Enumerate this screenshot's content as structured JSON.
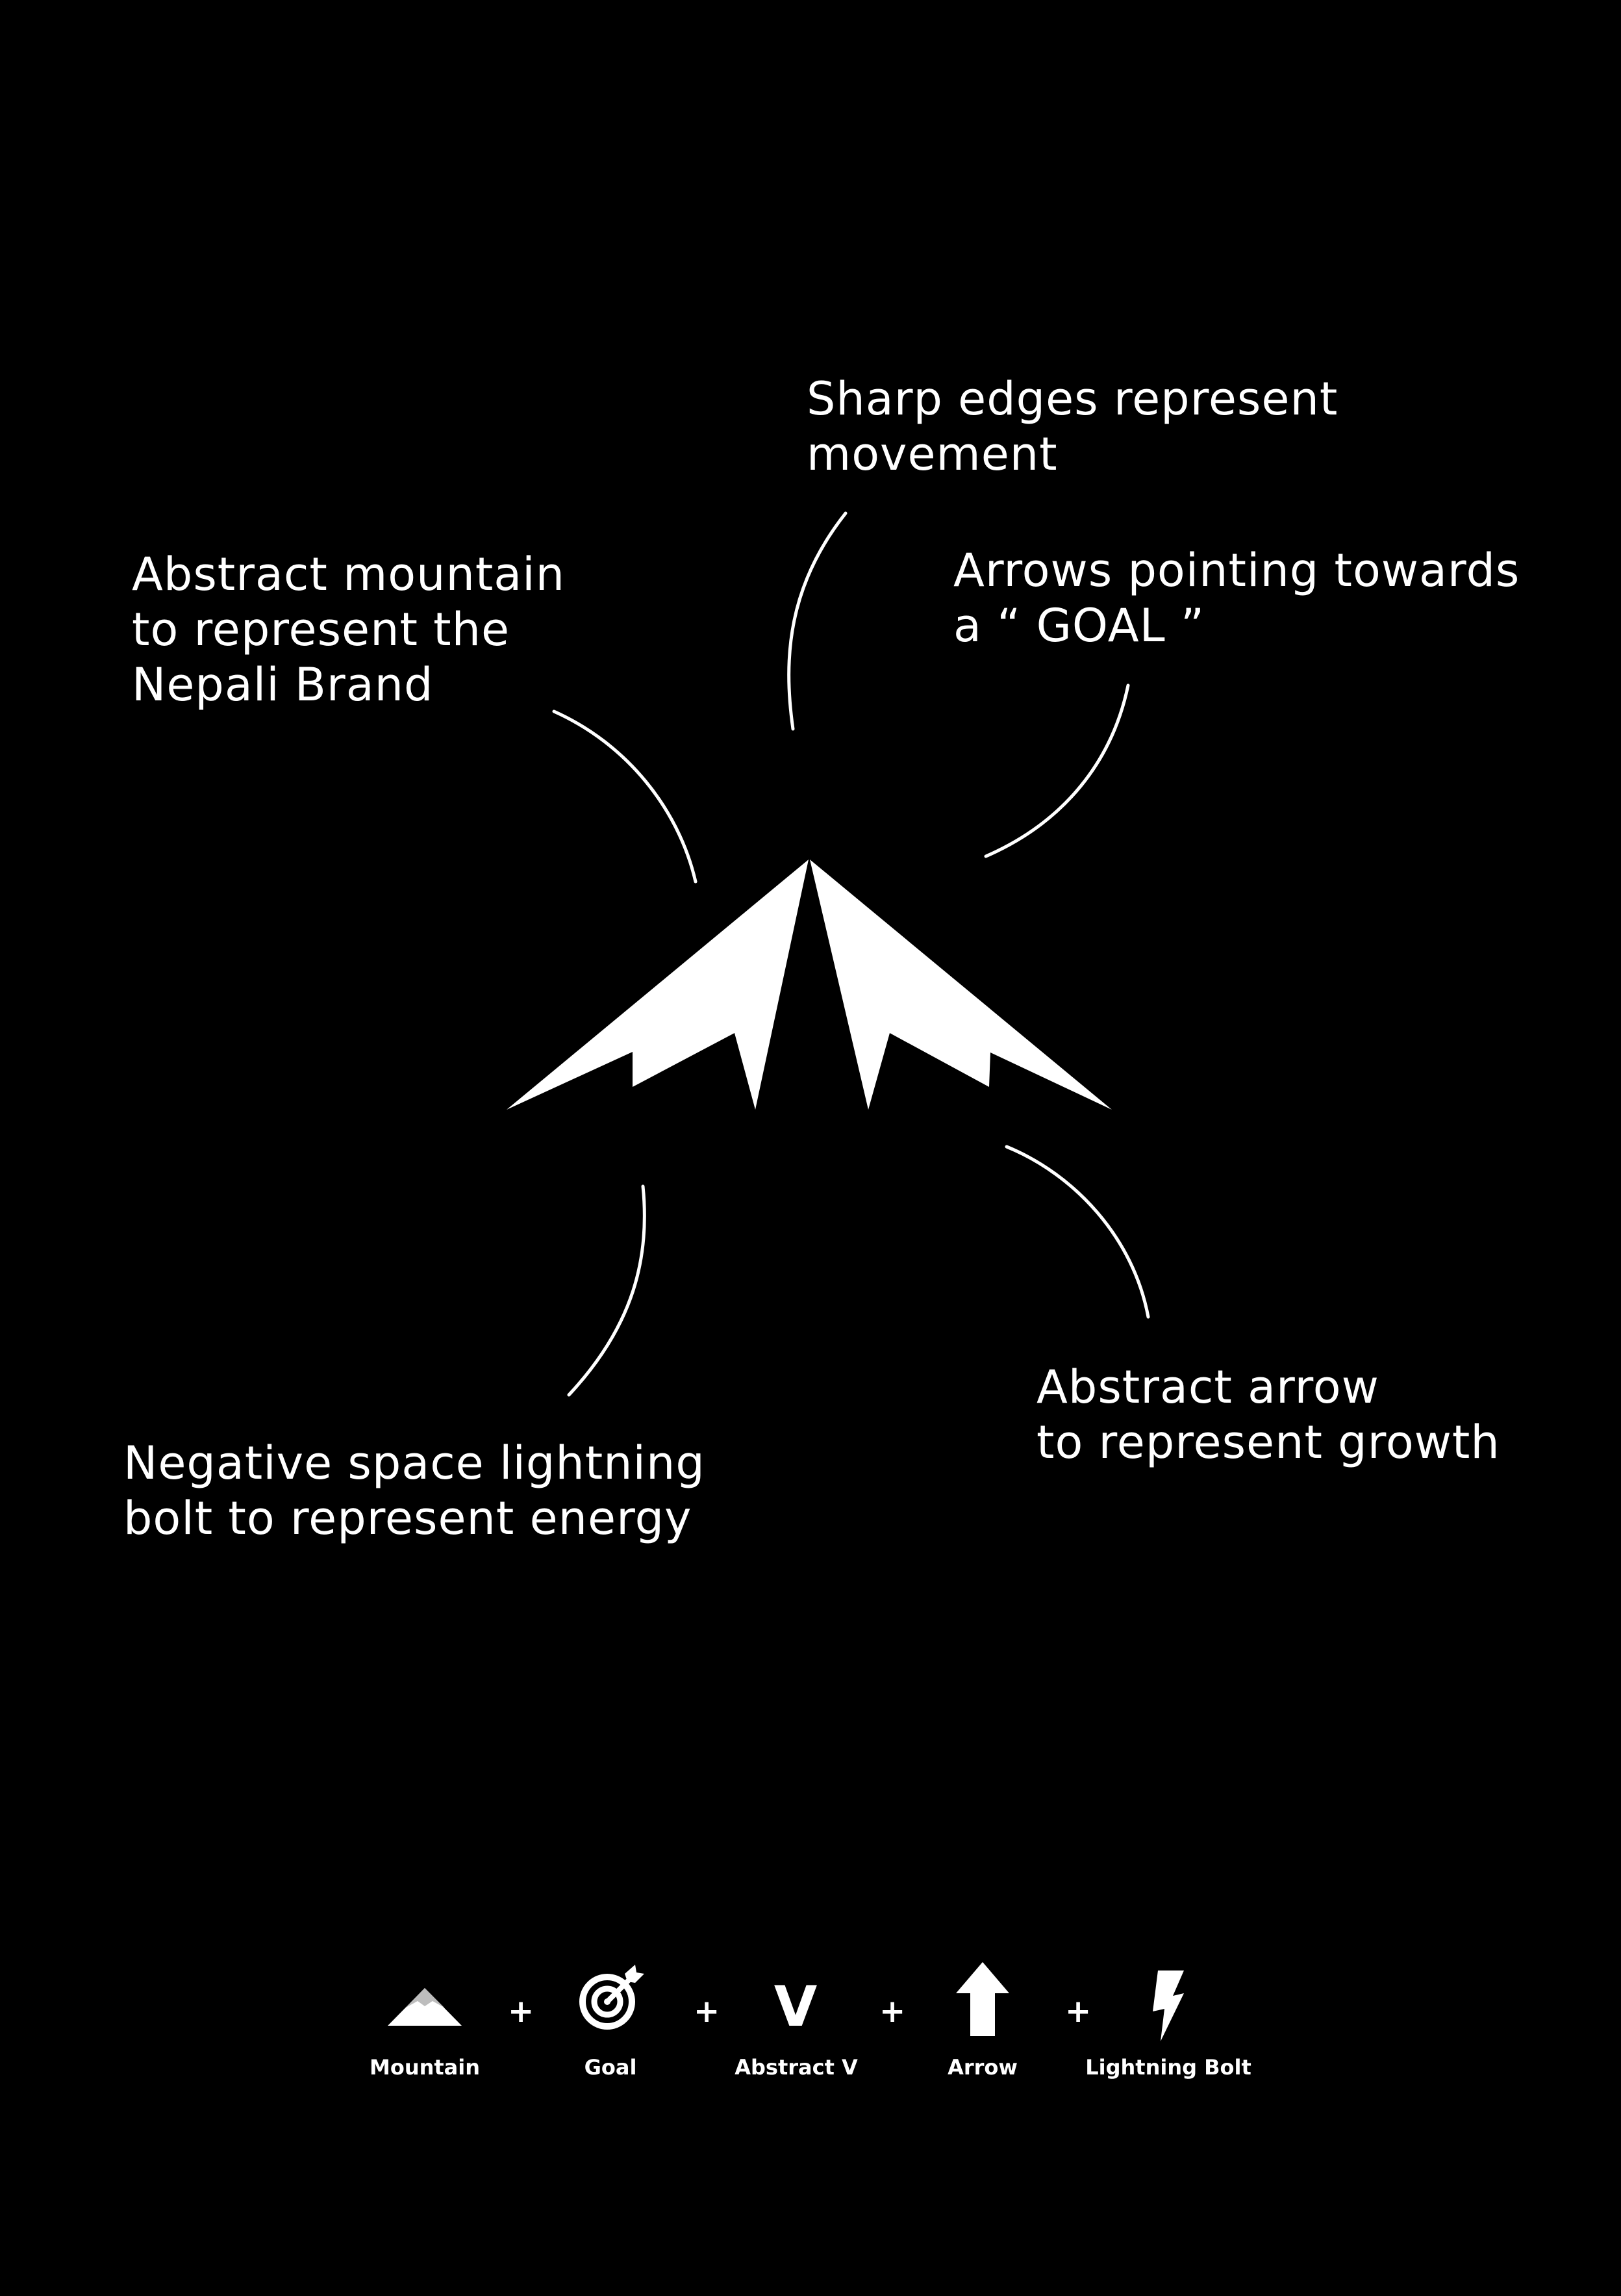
{
  "annotations": {
    "sharp_edges": [
      "Sharp edges represent",
      "movement"
    ],
    "arrows_goal": [
      "Arrows pointing towards",
      "a “ GOAL ”"
    ],
    "mountain": [
      "Abstract mountain",
      "to represent the",
      "Nepali Brand"
    ],
    "growth": [
      "Abstract arrow",
      "to represent growth"
    ],
    "energy": [
      "Negative space lightning",
      "bolt to represent energy"
    ]
  },
  "legend": {
    "separator": "+",
    "items": [
      {
        "label": "Mountain",
        "icon": "mountain-icon"
      },
      {
        "label": "Goal",
        "icon": "target-icon"
      },
      {
        "label": "Abstract V",
        "icon": "letter-v-icon",
        "glyph": "V"
      },
      {
        "label": "Arrow",
        "icon": "arrow-up-icon"
      },
      {
        "label": "Lightning Bolt",
        "icon": "lightning-bolt-icon"
      }
    ]
  },
  "colors": {
    "background": "#000000",
    "foreground": "#ffffff",
    "mountain_shade": "#bdbdbd"
  }
}
